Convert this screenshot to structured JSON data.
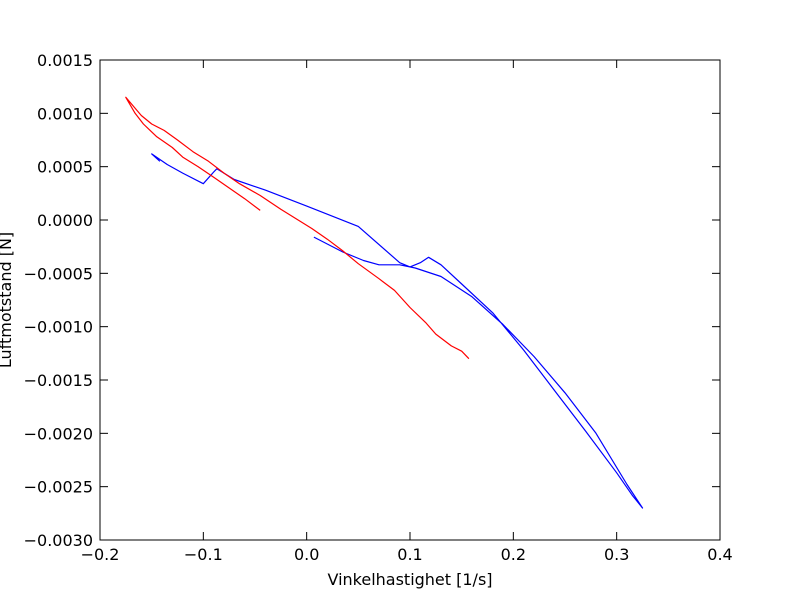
{
  "chart_data": {
    "type": "line",
    "title": "",
    "xlabel": "Vinkelhastighet [1/s]",
    "ylabel": "Luftmotstand [N]",
    "xlim": [
      -0.2,
      0.4
    ],
    "ylim": [
      -0.003,
      0.0015
    ],
    "xticks": [
      -0.2,
      -0.1,
      0.0,
      0.1,
      0.2,
      0.3,
      0.4
    ],
    "xtick_labels": [
      "−0.2",
      "−0.1",
      "0.0",
      "0.1",
      "0.2",
      "0.3",
      "0.4"
    ],
    "yticks": [
      0.0015,
      0.001,
      0.0005,
      0.0,
      -0.0005,
      -0.001,
      -0.0015,
      -0.002,
      -0.0025,
      -0.003
    ],
    "ytick_labels": [
      "0.0015",
      "0.0010",
      "0.0005",
      "0.0000",
      "−0.0005",
      "−0.0010",
      "−0.0015",
      "−0.0020",
      "−0.0025",
      "−0.0030"
    ],
    "grid": false,
    "series": [
      {
        "color": "#0000ff",
        "points": [
          [
            -0.142,
            0.00055
          ],
          [
            -0.15,
            0.00062
          ],
          [
            -0.135,
            0.00052
          ],
          [
            -0.12,
            0.00044
          ],
          [
            -0.1,
            0.00034
          ],
          [
            -0.09,
            0.00045
          ],
          [
            -0.087,
            0.00048
          ],
          [
            -0.07,
            0.00038
          ],
          [
            -0.04,
            0.00028
          ],
          [
            0.0,
            0.00013
          ],
          [
            0.05,
            -6e-05
          ],
          [
            0.09,
            -0.0004
          ],
          [
            0.1,
            -0.00044
          ],
          [
            0.11,
            -0.0004
          ],
          [
            0.118,
            -0.00035
          ],
          [
            0.13,
            -0.00042
          ],
          [
            0.15,
            -0.0006
          ],
          [
            0.18,
            -0.00087
          ],
          [
            0.21,
            -0.00122
          ],
          [
            0.24,
            -0.0016
          ],
          [
            0.27,
            -0.00198
          ],
          [
            0.3,
            -0.00237
          ],
          [
            0.315,
            -0.00258
          ],
          [
            0.325,
            -0.0027
          ],
          [
            0.31,
            -0.00248
          ],
          [
            0.28,
            -0.002
          ],
          [
            0.25,
            -0.00162
          ],
          [
            0.22,
            -0.00128
          ],
          [
            0.19,
            -0.00098
          ],
          [
            0.16,
            -0.00072
          ],
          [
            0.13,
            -0.00053
          ],
          [
            0.105,
            -0.00045
          ],
          [
            0.09,
            -0.00042
          ],
          [
            0.07,
            -0.00042
          ],
          [
            0.055,
            -0.00038
          ],
          [
            0.035,
            -0.0003
          ],
          [
            0.007,
            -0.00016
          ]
        ]
      },
      {
        "color": "#ff0000",
        "points": [
          [
            -0.045,
            9e-05
          ],
          [
            -0.06,
            0.0002
          ],
          [
            -0.075,
            0.0003
          ],
          [
            -0.09,
            0.0004
          ],
          [
            -0.105,
            0.0005
          ],
          [
            -0.12,
            0.00059
          ],
          [
            -0.13,
            0.00068
          ],
          [
            -0.145,
            0.00078
          ],
          [
            -0.158,
            0.0009
          ],
          [
            -0.166,
            0.001
          ],
          [
            -0.172,
            0.0011
          ],
          [
            -0.175,
            0.00115
          ],
          [
            -0.168,
            0.00107
          ],
          [
            -0.16,
            0.00098
          ],
          [
            -0.15,
            0.0009
          ],
          [
            -0.138,
            0.00084
          ],
          [
            -0.125,
            0.00075
          ],
          [
            -0.11,
            0.00064
          ],
          [
            -0.095,
            0.00055
          ],
          [
            -0.08,
            0.00044
          ],
          [
            -0.065,
            0.00034
          ],
          [
            -0.045,
            0.00023
          ],
          [
            -0.025,
            0.0001
          ],
          [
            -0.01,
            1e-05
          ],
          [
            0.005,
            -8e-05
          ],
          [
            0.02,
            -0.00018
          ],
          [
            0.035,
            -0.00029
          ],
          [
            0.05,
            -0.00041
          ],
          [
            0.07,
            -0.00055
          ],
          [
            0.085,
            -0.00066
          ],
          [
            0.1,
            -0.00082
          ],
          [
            0.115,
            -0.00096
          ],
          [
            0.125,
            -0.00107
          ],
          [
            0.14,
            -0.00118
          ],
          [
            0.15,
            -0.00123
          ],
          [
            0.157,
            -0.0013
          ]
        ]
      }
    ]
  }
}
